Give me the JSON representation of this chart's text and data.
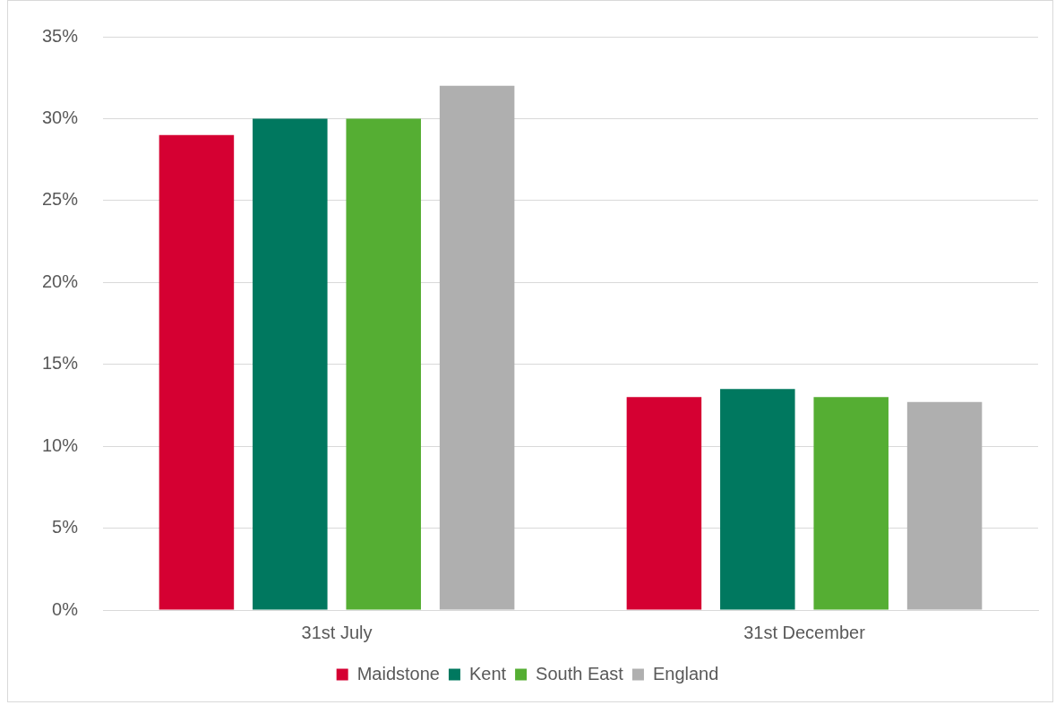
{
  "chart_data": {
    "type": "bar",
    "categories": [
      "31st July",
      "31st December"
    ],
    "series": [
      {
        "name": "Maidstone",
        "color": "#d50032",
        "values": [
          29,
          13
        ]
      },
      {
        "name": "Kent",
        "color": "#00785f",
        "values": [
          30,
          13.5
        ]
      },
      {
        "name": "South East",
        "color": "#55ae33",
        "values": [
          30,
          13
        ]
      },
      {
        "name": "England",
        "color": "#afafaf",
        "values": [
          32,
          12.7
        ]
      }
    ],
    "ylim": [
      0,
      35
    ],
    "yticks": [
      {
        "value": 0,
        "label": "0%"
      },
      {
        "value": 5,
        "label": "5%"
      },
      {
        "value": 10,
        "label": "10%"
      },
      {
        "value": 15,
        "label": "15%"
      },
      {
        "value": 20,
        "label": "20%"
      },
      {
        "value": 25,
        "label": "25%"
      },
      {
        "value": 30,
        "label": "30%"
      },
      {
        "value": 35,
        "label": "35%"
      }
    ],
    "grid": "y",
    "legend": "bottom"
  }
}
